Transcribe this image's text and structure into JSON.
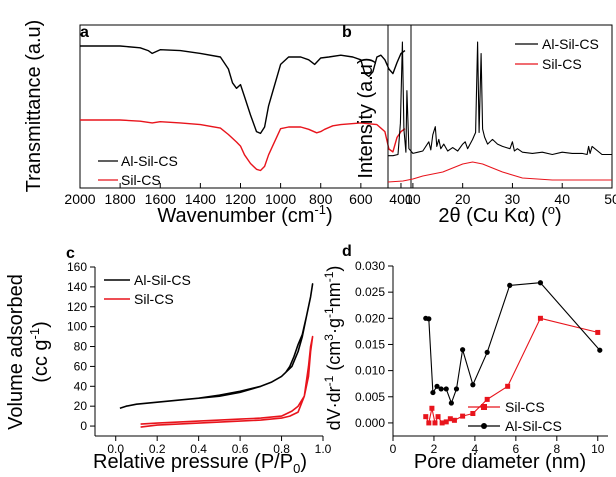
{
  "colors": {
    "black": "#000000",
    "red": "#e8141c"
  },
  "chart_data": [
    {
      "panel": "a",
      "type": "line",
      "xlabel_text": "Wavenumber (cm",
      "xlabel_sup": "-1",
      "xlabel_close": ")",
      "ylabel": "Transmittance (a.u)",
      "xlim": [
        2000,
        350
      ],
      "x_reversed": true,
      "xticks": [
        2000,
        1800,
        1600,
        1400,
        1200,
        1000,
        800,
        600,
        400
      ],
      "legend_position": "bottom-left",
      "series": [
        {
          "name": "Al-Sil-CS",
          "color": "#000000",
          "x": [
            2000,
            1800,
            1700,
            1660,
            1640,
            1600,
            1500,
            1400,
            1300,
            1260,
            1240,
            1220,
            1200,
            1180,
            1150,
            1120,
            1100,
            1080,
            1060,
            1040,
            1000,
            960,
            900,
            860,
            830,
            800,
            760,
            700,
            640,
            600,
            580,
            560,
            540,
            520,
            500,
            480,
            460,
            440,
            420,
            400,
            380
          ],
          "y": [
            0.0,
            0.0,
            0.02,
            0.05,
            0.08,
            0.04,
            0.05,
            0.08,
            0.12,
            0.25,
            0.4,
            0.46,
            0.42,
            0.55,
            0.75,
            0.93,
            0.95,
            0.88,
            0.65,
            0.5,
            0.2,
            0.12,
            0.12,
            0.15,
            0.2,
            0.13,
            0.12,
            0.1,
            0.12,
            0.15,
            0.3,
            0.33,
            0.28,
            0.12,
            0.1,
            0.15,
            0.25,
            0.3,
            0.18,
            0.08,
            0.05
          ]
        },
        {
          "name": "Sil-CS",
          "color": "#e8141c",
          "x": [
            2000,
            1800,
            1700,
            1640,
            1600,
            1500,
            1400,
            1300,
            1260,
            1220,
            1200,
            1180,
            1150,
            1120,
            1100,
            1080,
            1060,
            1040,
            1000,
            960,
            900,
            860,
            820,
            800,
            780,
            740,
            700,
            600,
            520,
            480,
            460,
            440,
            420,
            400,
            380
          ],
          "y": [
            0.0,
            0.0,
            0.02,
            0.05,
            0.03,
            0.05,
            0.08,
            0.14,
            0.25,
            0.38,
            0.45,
            0.6,
            0.75,
            0.85,
            0.87,
            0.8,
            0.6,
            0.45,
            0.15,
            0.12,
            0.12,
            0.16,
            0.22,
            0.2,
            0.16,
            0.1,
            0.08,
            0.05,
            0.08,
            0.2,
            0.5,
            0.55,
            0.3,
            0.2,
            0.15
          ]
        }
      ]
    },
    {
      "panel": "b",
      "type": "line",
      "xlabel_text": "2θ (Cu Kα) (",
      "xlabel_sup": "o",
      "xlabel_close": ")",
      "ylabel": "Intensity (a.u)",
      "xlim": [
        5,
        50
      ],
      "xticks": [
        10,
        20,
        30,
        40,
        50
      ],
      "legend_position": "top-right",
      "series": [
        {
          "name": "Al-Sil-CS",
          "color": "#000000",
          "x": [
            5,
            6,
            7,
            7.5,
            7.9,
            8.2,
            8.6,
            8.8,
            9.2,
            10,
            11,
            12,
            13.2,
            13.6,
            14,
            14.5,
            14.8,
            15.2,
            15.6,
            16.2,
            17,
            18,
            19,
            20,
            20.5,
            21,
            22,
            22.6,
            23,
            23.3,
            23.7,
            24,
            24.4,
            25,
            26,
            27,
            28,
            29.5,
            30,
            30.4,
            31,
            32,
            34,
            36,
            38,
            40,
            42,
            44,
            45,
            45.3,
            45.6,
            46,
            48,
            50
          ],
          "y": [
            0.02,
            0.02,
            0.03,
            0.3,
            1.0,
            0.25,
            0.05,
            0.58,
            0.08,
            0.04,
            0.05,
            0.06,
            0.14,
            0.07,
            0.2,
            0.27,
            0.1,
            0.16,
            0.08,
            0.12,
            0.06,
            0.09,
            0.06,
            0.12,
            0.14,
            0.08,
            0.16,
            0.22,
            1.0,
            0.22,
            0.9,
            0.25,
            0.18,
            0.12,
            0.16,
            0.12,
            0.1,
            0.08,
            0.14,
            0.06,
            0.08,
            0.05,
            0.04,
            0.05,
            0.03,
            0.05,
            0.04,
            0.04,
            0.03,
            0.1,
            0.04,
            0.1,
            0.03,
            0.03
          ]
        },
        {
          "name": "Sil-CS",
          "color": "#e8141c",
          "x": [
            5,
            8,
            10,
            12,
            14,
            16,
            18,
            20,
            22,
            24,
            26,
            28,
            30,
            32,
            35,
            38,
            42,
            46,
            50
          ],
          "y": [
            0.02,
            0.03,
            0.05,
            0.08,
            0.1,
            0.12,
            0.16,
            0.2,
            0.22,
            0.2,
            0.16,
            0.12,
            0.09,
            0.06,
            0.05,
            0.04,
            0.04,
            0.04,
            0.04
          ]
        }
      ]
    },
    {
      "panel": "c",
      "type": "line",
      "xlabel_text": "Relative pressure (P/P",
      "xlabel_sub": "0",
      "xlabel_close": ")",
      "ylabel_line1": "Volume adsorbed",
      "ylabel_line2": "(cc g",
      "ylabel_sup": "-1",
      "ylabel_close": ")",
      "xlim": [
        -0.1,
        1.0
      ],
      "ylim": [
        -10,
        160
      ],
      "xticks": [
        0.0,
        0.2,
        0.4,
        0.6,
        0.8,
        1.0
      ],
      "yticks": [
        0,
        20,
        40,
        60,
        80,
        100,
        120,
        140,
        160
      ],
      "legend_position": "top-left",
      "series": [
        {
          "name": "Al-Sil-CS",
          "color": "#000000",
          "x": [
            0.02,
            0.05,
            0.1,
            0.2,
            0.3,
            0.4,
            0.5,
            0.6,
            0.7,
            0.75,
            0.8,
            0.85,
            0.88,
            0.9,
            0.92,
            0.94,
            0.95,
            0.94,
            0.92,
            0.9,
            0.88,
            0.86,
            0.84,
            0.82,
            0.8,
            0.75,
            0.7,
            0.6,
            0.5,
            0.4,
            0.3,
            0.2,
            0.1,
            0.05,
            0.02
          ],
          "y": [
            18,
            20,
            22,
            24,
            26,
            28,
            30,
            34,
            40,
            44,
            50,
            60,
            75,
            90,
            110,
            130,
            143,
            130,
            110,
            92,
            82,
            70,
            60,
            54,
            50,
            44,
            40,
            35,
            31,
            28,
            26,
            24,
            22,
            20,
            18
          ]
        },
        {
          "name": "Sil-CS",
          "color": "#e8141c",
          "x": [
            0.12,
            0.2,
            0.3,
            0.4,
            0.5,
            0.6,
            0.7,
            0.75,
            0.8,
            0.84,
            0.88,
            0.91,
            0.93,
            0.94,
            0.95,
            0.94,
            0.93,
            0.91,
            0.88,
            0.85,
            0.82,
            0.8,
            0.75,
            0.7,
            0.6,
            0.5,
            0.4,
            0.3,
            0.2,
            0.12
          ],
          "y": [
            -1,
            1,
            2,
            3,
            4,
            5,
            6,
            7,
            8,
            10,
            14,
            30,
            60,
            80,
            90,
            75,
            50,
            30,
            20,
            15,
            12,
            10,
            9,
            8,
            7,
            6,
            5,
            4,
            3,
            2
          ]
        }
      ]
    },
    {
      "panel": "d",
      "type": "line",
      "xlabel": "Pore diameter (nm)",
      "ylabel_text": "dV·dr",
      "ylabel_sup1": "-1",
      "ylabel_mid": " (cm",
      "ylabel_sup2": "3",
      "ylabel_mid2": "·g",
      "ylabel_sup3": "-1",
      "ylabel_mid3": "nm",
      "ylabel_sup4": "-1",
      "ylabel_close": ")",
      "xlim": [
        0,
        10.5
      ],
      "ylim": [
        -0.0025,
        0.03
      ],
      "xticks": [
        0,
        2,
        4,
        6,
        8,
        10
      ],
      "yticks": [
        "0.000",
        "0.005",
        "0.010",
        "0.015",
        "0.020",
        "0.025",
        "0.030"
      ],
      "ytick_values": [
        0,
        0.005,
        0.01,
        0.015,
        0.02,
        0.025,
        0.03
      ],
      "legend_position": "bottom-right",
      "series": [
        {
          "name": "Sil-CS",
          "color": "#e8141c",
          "marker": "square",
          "x": [
            1.6,
            1.75,
            1.9,
            2.05,
            2.2,
            2.4,
            2.6,
            2.8,
            3.0,
            3.4,
            3.9,
            4.6,
            5.6,
            7.2,
            10.0
          ],
          "y": [
            0.0012,
            0.0,
            0.0028,
            0.0,
            0.0012,
            0.0,
            0.0002,
            0.0008,
            0.0005,
            0.0013,
            0.0018,
            0.0045,
            0.007,
            0.02,
            0.0173
          ]
        },
        {
          "name": "Al-Sil-CS",
          "color": "#000000",
          "marker": "circle",
          "x": [
            1.6,
            1.75,
            1.95,
            2.15,
            2.35,
            2.6,
            2.85,
            3.1,
            3.4,
            3.9,
            4.6,
            5.7,
            7.2,
            10.1
          ],
          "y": [
            0.02,
            0.0199,
            0.0058,
            0.007,
            0.0065,
            0.0065,
            0.0038,
            0.0065,
            0.014,
            0.0073,
            0.0135,
            0.0263,
            0.0268,
            0.0139
          ]
        }
      ]
    }
  ],
  "panel_labels": [
    "a",
    "b",
    "c",
    "d"
  ]
}
